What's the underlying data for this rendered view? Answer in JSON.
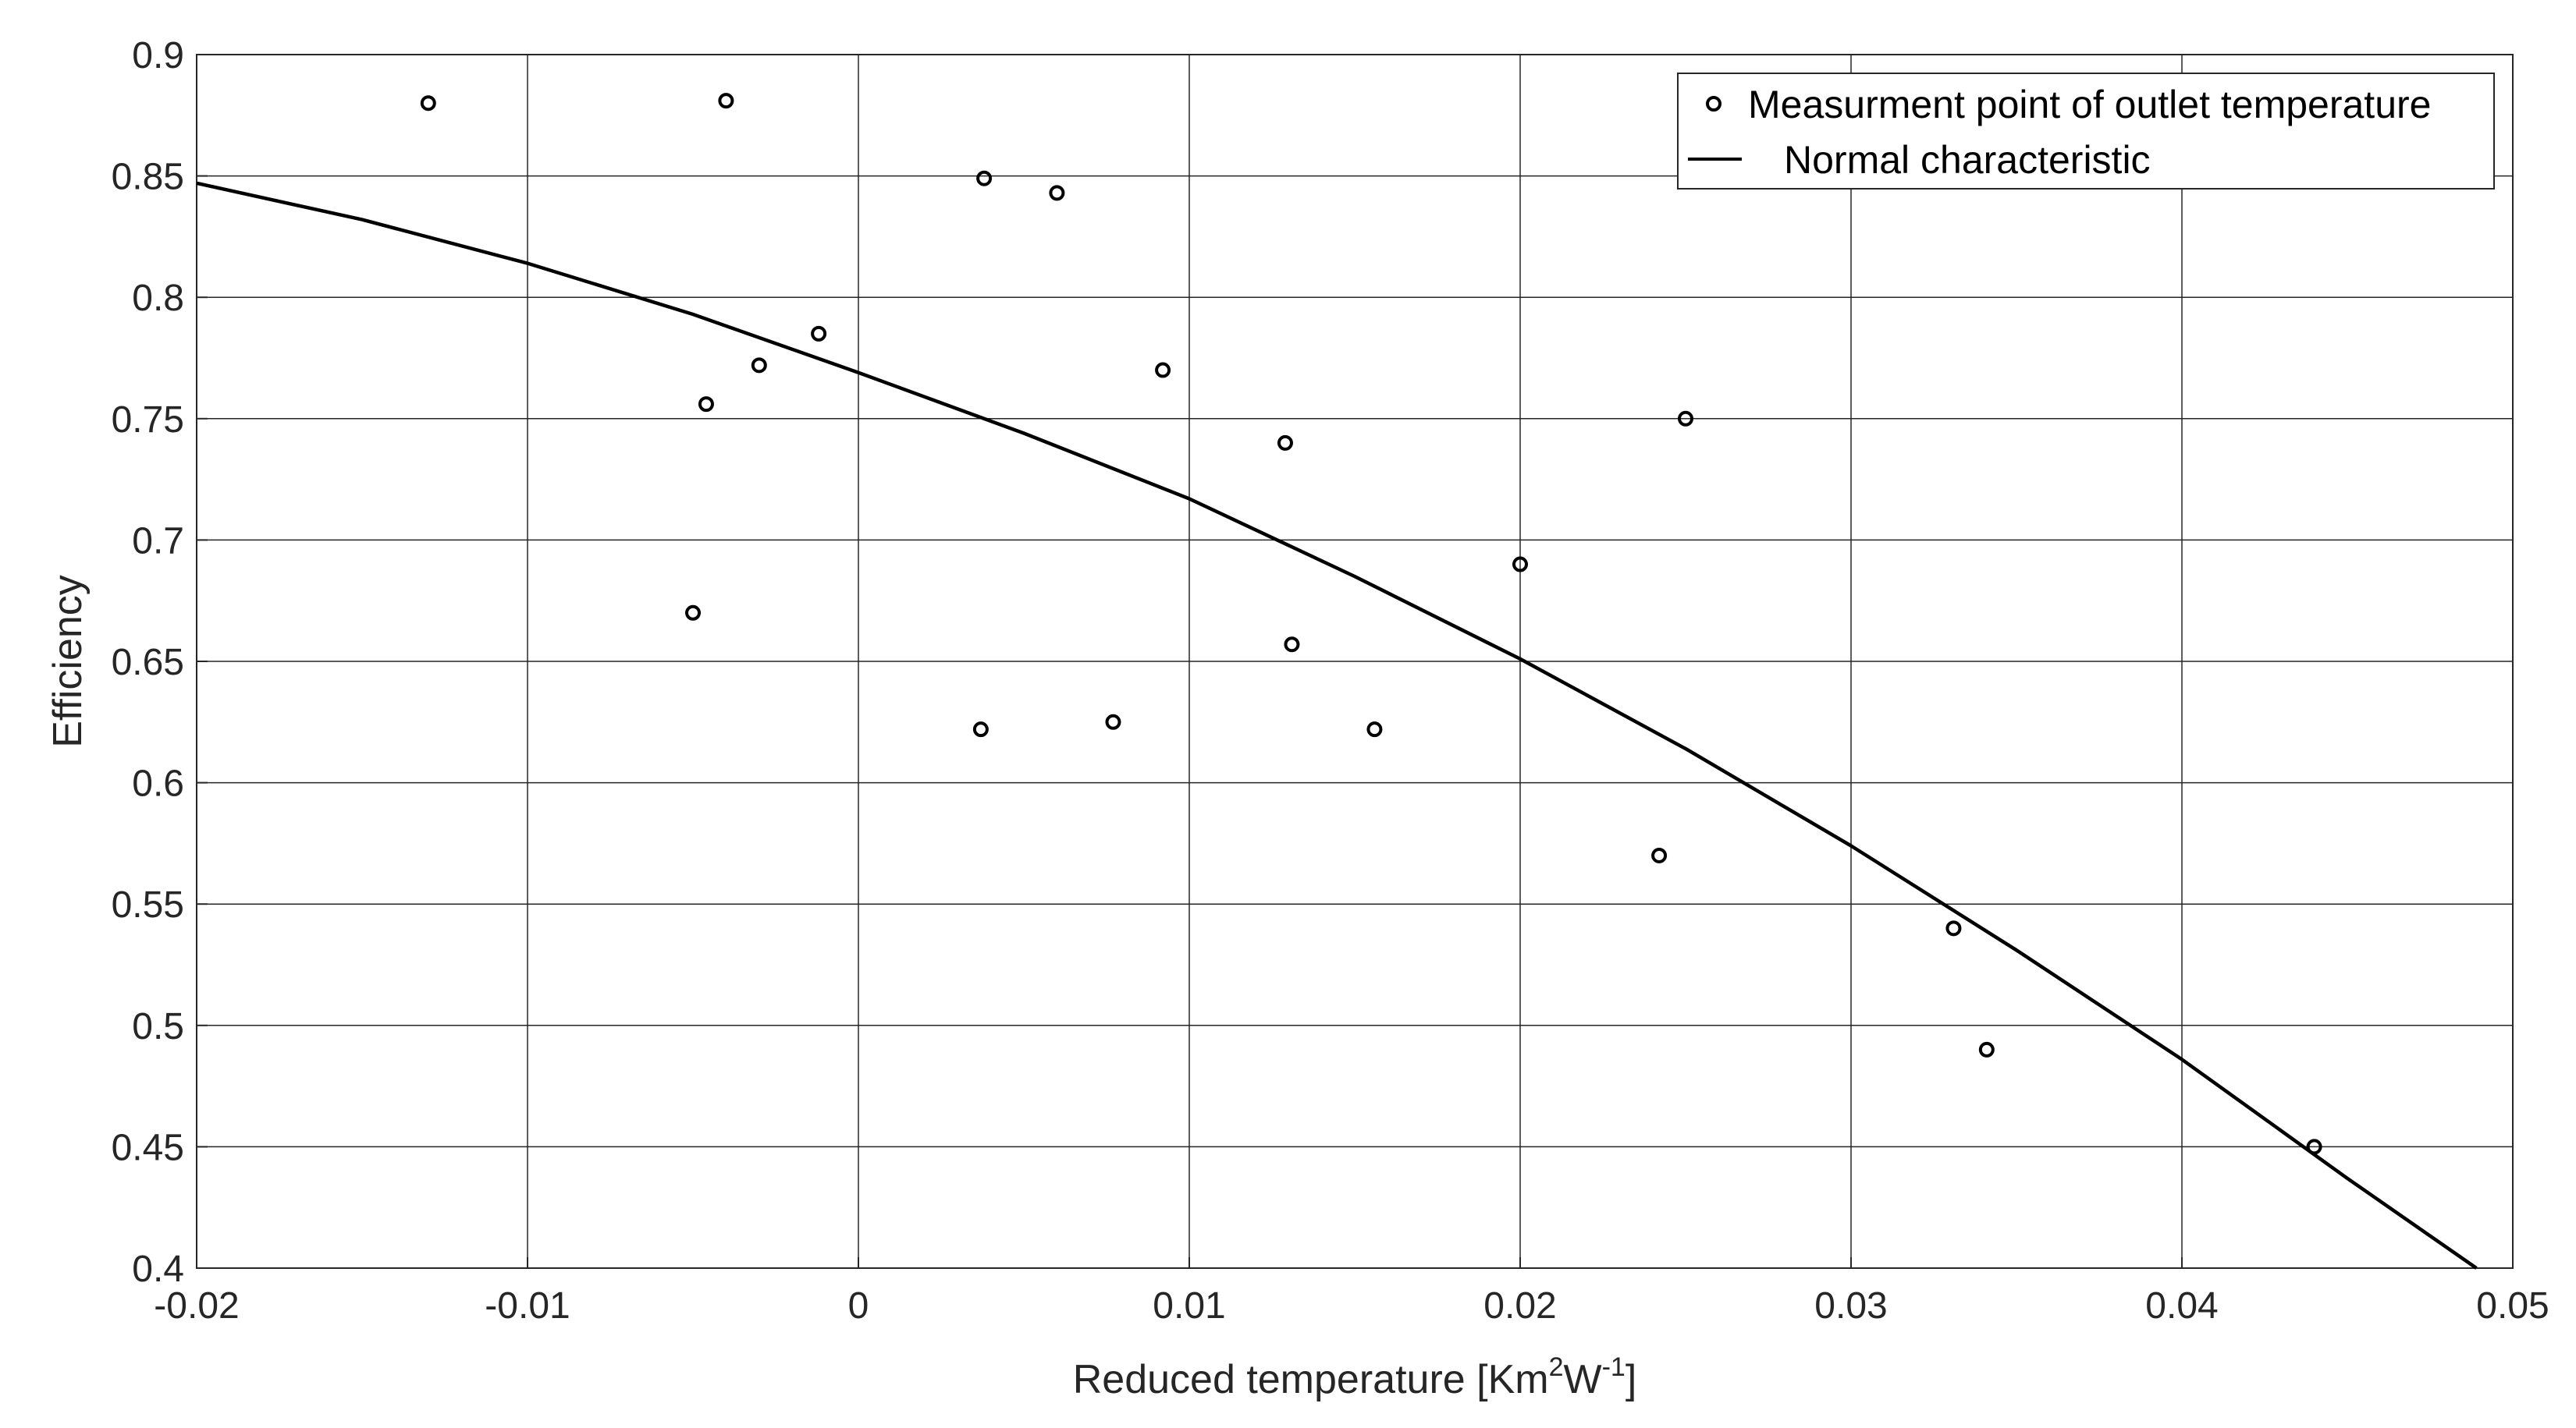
{
  "chart_data": {
    "type": "scatter",
    "title": "",
    "xlabel": "Reduced temperature [Km",
    "xlabel_sup1": "2",
    "xlabel_mid": "W",
    "xlabel_sup2": "-1",
    "xlabel_end": "]",
    "ylabel": "Efficiency",
    "xlim": [
      -0.02,
      0.05
    ],
    "ylim": [
      0.4,
      0.9
    ],
    "grid": true,
    "xticks": [
      -0.02,
      -0.01,
      0,
      0.01,
      0.02,
      0.03,
      0.04,
      0.05
    ],
    "xtick_labels": [
      "-0.02",
      "-0.01",
      "0",
      "0.01",
      "0.02",
      "0.03",
      "0.04",
      "0.05"
    ],
    "yticks": [
      0.4,
      0.45,
      0.5,
      0.55,
      0.6,
      0.65,
      0.7,
      0.75,
      0.8,
      0.85,
      0.9
    ],
    "ytick_labels": [
      "0.4",
      "0.45",
      "0.5",
      "0.55",
      "0.6",
      "0.65",
      "0.7",
      "0.75",
      "0.8",
      "0.85",
      "0.9"
    ],
    "legend_position": "top-right",
    "series": [
      {
        "name": "Measurment point of outlet temperature",
        "kind": "scatter",
        "marker": "circle-open",
        "color": "#000000",
        "x": [
          -0.013,
          -0.004,
          -0.0046,
          -0.005,
          -0.003,
          -0.0012,
          0.0038,
          0.0037,
          0.006,
          0.0077,
          0.0092,
          0.0129,
          0.0131,
          0.0156,
          0.02,
          0.025,
          0.0242,
          0.0331,
          0.0341,
          0.044
        ],
        "y": [
          0.88,
          0.881,
          0.756,
          0.67,
          0.772,
          0.785,
          0.849,
          0.622,
          0.843,
          0.625,
          0.77,
          0.74,
          0.657,
          0.622,
          0.69,
          0.75,
          0.57,
          0.54,
          0.49,
          0.45
        ]
      },
      {
        "name": "Normal characteristic",
        "kind": "line",
        "color": "#000000",
        "x": [
          -0.02,
          -0.015,
          -0.01,
          -0.005,
          0,
          0.005,
          0.01,
          0.015,
          0.02,
          0.025,
          0.03,
          0.035,
          0.04,
          0.045,
          0.0489
        ],
        "y": [
          0.847,
          0.832,
          0.814,
          0.793,
          0.769,
          0.744,
          0.717,
          0.685,
          0.651,
          0.614,
          0.574,
          0.531,
          0.486,
          0.437,
          0.4
        ]
      }
    ]
  }
}
